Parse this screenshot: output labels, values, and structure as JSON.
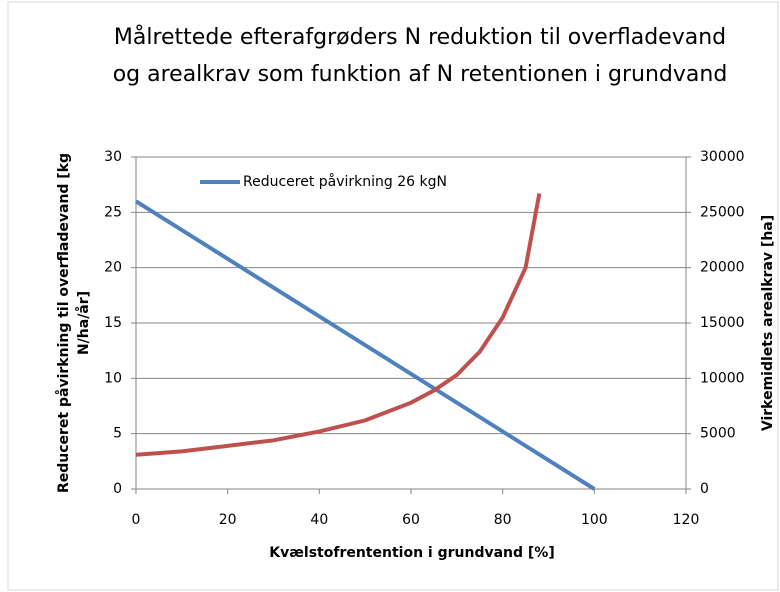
{
  "chart_data": {
    "type": "line",
    "title": [
      "Målrettede efterafgrøders  N reduktion til overfladevand",
      "og arealkrav som funktion af N retentionen i grundvand"
    ],
    "xlabel": "Kvælstofrentention i grundvand [%]",
    "ylabel": [
      "Reduceret påvirkning til overfladevand [kg",
      "N/ha/år]"
    ],
    "y2label": "Virkemidlets arealkrav [ha]",
    "xlim": [
      0,
      120
    ],
    "xticks": [
      0,
      20,
      40,
      60,
      80,
      100,
      120
    ],
    "ylim": [
      0,
      30
    ],
    "yticks": [
      0,
      5,
      10,
      15,
      20,
      25,
      30
    ],
    "y2lim": [
      0,
      30000
    ],
    "y2ticks": [
      0,
      5000,
      10000,
      15000,
      20000,
      25000,
      30000
    ],
    "grid": true,
    "legend": "top-left",
    "series": [
      {
        "name": "Reduceret påvirkning 26 kgN",
        "color": "#4f81bd",
        "x": [
          0,
          100
        ],
        "values": [
          26,
          0
        ]
      },
      {
        "color": "#c0504d",
        "axis": "y2",
        "x": [
          0,
          10,
          20,
          30,
          40,
          50,
          60,
          65,
          70,
          75,
          80,
          85,
          88
        ],
        "values": [
          3100,
          3400,
          3900,
          4400,
          5200,
          6200,
          7800,
          8900,
          10300,
          12400,
          15500,
          20000,
          26700
        ]
      }
    ]
  }
}
